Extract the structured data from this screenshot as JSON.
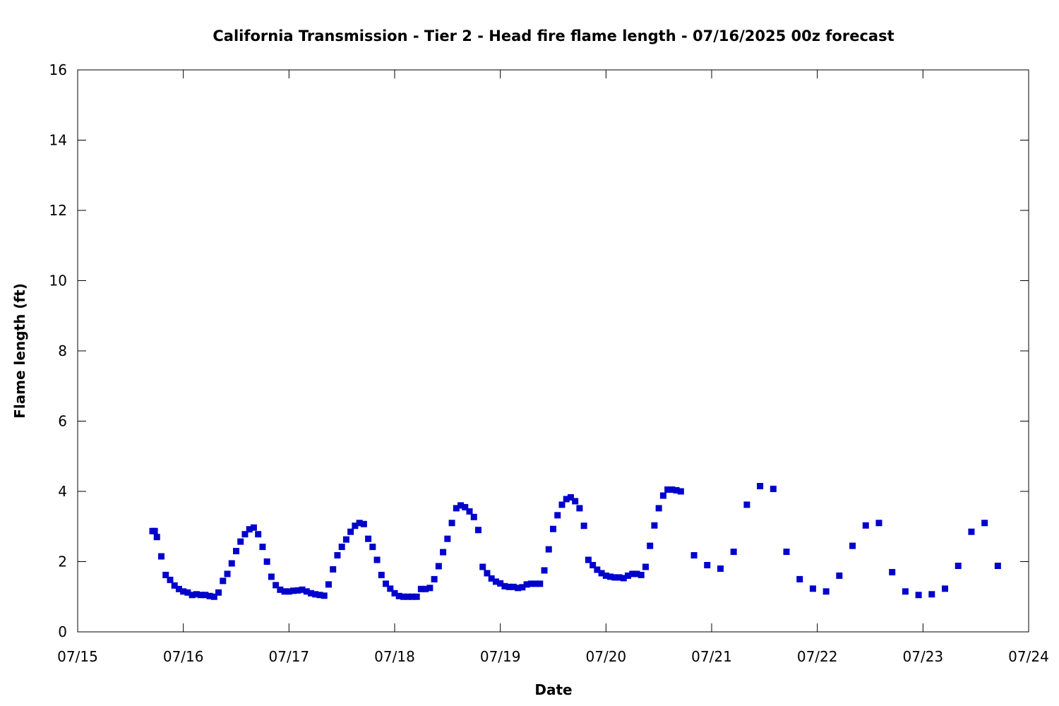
{
  "chart_data": {
    "type": "scatter",
    "title": "California Transmission - Tier 2 - Head fire flame length - 07/16/2025 00z forecast",
    "xlabel": "Date",
    "ylabel": "Flame length (ft)",
    "xlim": [
      "07/15",
      "07/24"
    ],
    "ylim": [
      0,
      16
    ],
    "x_ticks": [
      "07/15",
      "07/16",
      "07/17",
      "07/18",
      "07/19",
      "07/20",
      "07/21",
      "07/22",
      "07/23",
      "07/24"
    ],
    "y_ticks": [
      "0",
      "2",
      "4",
      "6",
      "8",
      "10",
      "12",
      "14",
      "16"
    ],
    "grid": false,
    "legend": "none",
    "marker_color": "#0000cc",
    "series": [
      {
        "points": [
          [
            "07/15 17:00",
            2.87
          ],
          [
            "07/15 17:30",
            2.87
          ],
          [
            "07/15 18:00",
            2.7
          ],
          [
            "07/15 19:00",
            2.15
          ],
          [
            "07/15 20:00",
            1.62
          ],
          [
            "07/15 21:00",
            1.48
          ],
          [
            "07/15 22:00",
            1.32
          ],
          [
            "07/15 23:00",
            1.22
          ],
          [
            "07/16 00:00",
            1.15
          ],
          [
            "07/16 01:00",
            1.12
          ],
          [
            "07/16 02:00",
            1.05
          ],
          [
            "07/16 03:00",
            1.07
          ],
          [
            "07/16 04:00",
            1.05
          ],
          [
            "07/16 05:00",
            1.05
          ],
          [
            "07/16 06:00",
            1.02
          ],
          [
            "07/16 07:00",
            1.0
          ],
          [
            "07/16 08:00",
            1.12
          ],
          [
            "07/16 09:00",
            1.45
          ],
          [
            "07/16 10:00",
            1.65
          ],
          [
            "07/16 11:00",
            1.95
          ],
          [
            "07/16 12:00",
            2.3
          ],
          [
            "07/16 13:00",
            2.57
          ],
          [
            "07/16 14:00",
            2.78
          ],
          [
            "07/16 15:00",
            2.92
          ],
          [
            "07/16 16:00",
            2.97
          ],
          [
            "07/16 17:00",
            2.78
          ],
          [
            "07/16 18:00",
            2.42
          ],
          [
            "07/16 19:00",
            2.0
          ],
          [
            "07/16 20:00",
            1.57
          ],
          [
            "07/16 21:00",
            1.33
          ],
          [
            "07/16 22:00",
            1.2
          ],
          [
            "07/16 23:00",
            1.15
          ],
          [
            "07/17 00:00",
            1.15
          ],
          [
            "07/17 01:00",
            1.17
          ],
          [
            "07/17 02:00",
            1.18
          ],
          [
            "07/17 03:00",
            1.2
          ],
          [
            "07/17 04:00",
            1.15
          ],
          [
            "07/17 05:00",
            1.1
          ],
          [
            "07/17 06:00",
            1.07
          ],
          [
            "07/17 07:00",
            1.05
          ],
          [
            "07/17 08:00",
            1.03
          ],
          [
            "07/17 09:00",
            1.35
          ],
          [
            "07/17 10:00",
            1.78
          ],
          [
            "07/17 11:00",
            2.18
          ],
          [
            "07/17 12:00",
            2.42
          ],
          [
            "07/17 13:00",
            2.63
          ],
          [
            "07/17 14:00",
            2.85
          ],
          [
            "07/17 15:00",
            3.02
          ],
          [
            "07/17 16:00",
            3.1
          ],
          [
            "07/17 17:00",
            3.07
          ],
          [
            "07/17 18:00",
            2.65
          ],
          [
            "07/17 19:00",
            2.42
          ],
          [
            "07/17 20:00",
            2.05
          ],
          [
            "07/17 21:00",
            1.62
          ],
          [
            "07/17 22:00",
            1.37
          ],
          [
            "07/17 23:00",
            1.23
          ],
          [
            "07/18 00:00",
            1.1
          ],
          [
            "07/18 01:00",
            1.02
          ],
          [
            "07/18 02:00",
            1.0
          ],
          [
            "07/18 03:00",
            1.0
          ],
          [
            "07/18 04:00",
            1.0
          ],
          [
            "07/18 05:00",
            1.0
          ],
          [
            "07/18 06:00",
            1.22
          ],
          [
            "07/18 07:00",
            1.22
          ],
          [
            "07/18 08:00",
            1.25
          ],
          [
            "07/18 09:00",
            1.5
          ],
          [
            "07/18 10:00",
            1.87
          ],
          [
            "07/18 11:00",
            2.27
          ],
          [
            "07/18 12:00",
            2.65
          ],
          [
            "07/18 13:00",
            3.1
          ],
          [
            "07/18 14:00",
            3.52
          ],
          [
            "07/18 15:00",
            3.6
          ],
          [
            "07/18 16:00",
            3.55
          ],
          [
            "07/18 17:00",
            3.43
          ],
          [
            "07/18 18:00",
            3.27
          ],
          [
            "07/18 19:00",
            2.9
          ],
          [
            "07/18 20:00",
            1.85
          ],
          [
            "07/18 21:00",
            1.67
          ],
          [
            "07/18 22:00",
            1.52
          ],
          [
            "07/18 23:00",
            1.43
          ],
          [
            "07/19 00:00",
            1.38
          ],
          [
            "07/19 01:00",
            1.3
          ],
          [
            "07/19 02:00",
            1.28
          ],
          [
            "07/19 03:00",
            1.28
          ],
          [
            "07/19 04:00",
            1.25
          ],
          [
            "07/19 05:00",
            1.27
          ],
          [
            "07/19 06:00",
            1.35
          ],
          [
            "07/19 07:00",
            1.37
          ],
          [
            "07/19 08:00",
            1.37
          ],
          [
            "07/19 09:00",
            1.37
          ],
          [
            "07/19 10:00",
            1.75
          ],
          [
            "07/19 11:00",
            2.35
          ],
          [
            "07/19 12:00",
            2.93
          ],
          [
            "07/19 13:00",
            3.32
          ],
          [
            "07/19 14:00",
            3.62
          ],
          [
            "07/19 15:00",
            3.78
          ],
          [
            "07/19 16:00",
            3.83
          ],
          [
            "07/19 17:00",
            3.72
          ],
          [
            "07/19 18:00",
            3.52
          ],
          [
            "07/19 19:00",
            3.02
          ],
          [
            "07/19 20:00",
            2.05
          ],
          [
            "07/19 21:00",
            1.9
          ],
          [
            "07/19 22:00",
            1.77
          ],
          [
            "07/19 23:00",
            1.67
          ],
          [
            "07/20 00:00",
            1.6
          ],
          [
            "07/20 01:00",
            1.57
          ],
          [
            "07/20 02:00",
            1.55
          ],
          [
            "07/20 03:00",
            1.55
          ],
          [
            "07/20 04:00",
            1.53
          ],
          [
            "07/20 05:00",
            1.6
          ],
          [
            "07/20 06:00",
            1.65
          ],
          [
            "07/20 07:00",
            1.65
          ],
          [
            "07/20 08:00",
            1.62
          ],
          [
            "07/20 09:00",
            1.85
          ],
          [
            "07/20 10:00",
            2.45
          ],
          [
            "07/20 11:00",
            3.03
          ],
          [
            "07/20 12:00",
            3.52
          ],
          [
            "07/20 13:00",
            3.88
          ],
          [
            "07/20 14:00",
            4.05
          ],
          [
            "07/20 15:00",
            4.05
          ],
          [
            "07/20 16:00",
            4.03
          ],
          [
            "07/20 17:00",
            4.0
          ],
          [
            "07/20 20:00",
            2.18
          ],
          [
            "07/20 23:00",
            1.9
          ],
          [
            "07/21 02:00",
            1.8
          ],
          [
            "07/21 05:00",
            2.28
          ],
          [
            "07/21 08:00",
            3.62
          ],
          [
            "07/21 11:00",
            4.15
          ],
          [
            "07/21 14:00",
            4.07
          ],
          [
            "07/21 17:00",
            2.28
          ],
          [
            "07/21 20:00",
            1.5
          ],
          [
            "07/21 23:00",
            1.23
          ],
          [
            "07/22 02:00",
            1.15
          ],
          [
            "07/22 05:00",
            1.6
          ],
          [
            "07/22 08:00",
            2.45
          ],
          [
            "07/22 11:00",
            3.03
          ],
          [
            "07/22 14:00",
            3.1
          ],
          [
            "07/22 17:00",
            1.7
          ],
          [
            "07/22 20:00",
            1.15
          ],
          [
            "07/22 23:00",
            1.05
          ],
          [
            "07/23 02:00",
            1.07
          ],
          [
            "07/23 05:00",
            1.23
          ],
          [
            "07/23 08:00",
            1.88
          ],
          [
            "07/23 11:00",
            2.85
          ],
          [
            "07/23 14:00",
            3.1
          ],
          [
            "07/23 17:00",
            1.88
          ]
        ]
      }
    ]
  }
}
